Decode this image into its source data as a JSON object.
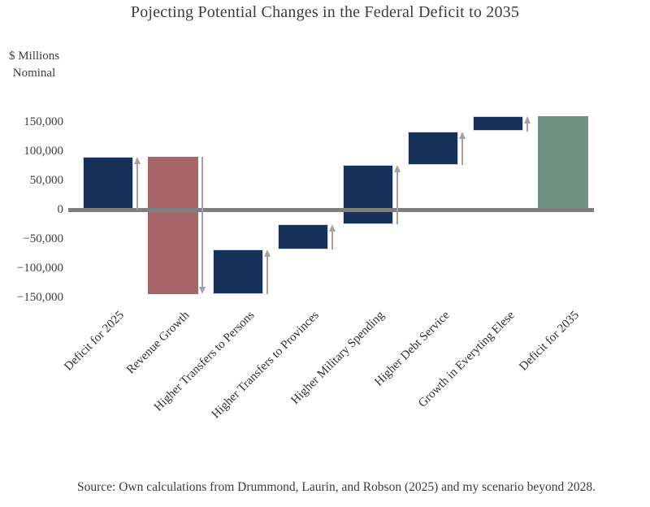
{
  "chart_data": {
    "type": "bar",
    "subtype": "waterfall",
    "title": "Pojecting Potential Changes in the Federal Deficit to 2035",
    "ylabel_lines": [
      "$ Millions",
      "Nominal"
    ],
    "units": "$ Millions Nominal",
    "grid": false,
    "legend": false,
    "ylim": [
      -160000,
      175000
    ],
    "yticks": [
      {
        "value": 150000,
        "label": "150,000"
      },
      {
        "value": 100000,
        "label": "100,000"
      },
      {
        "value": 50000,
        "label": "50,000"
      },
      {
        "value": 0,
        "label": "0"
      },
      {
        "value": -50000,
        "label": "−50,000"
      },
      {
        "value": -100000,
        "label": "−100,000"
      },
      {
        "value": -150000,
        "label": "−150,000"
      }
    ],
    "categories": [
      "Deficit for 2025",
      "Revenue Growth",
      "Higher Transfers to Persons",
      "Higher Transfers to Provinces",
      "Higher Military Spending",
      "Higher Debt Service",
      "Growth in Everyting Elese",
      "Deficit for 2035"
    ],
    "bars": [
      {
        "label": "Deficit for 2025",
        "start": 0,
        "end": 90000,
        "change": 90000,
        "kind": "total-start",
        "arrow": "up",
        "color": "#16325a"
      },
      {
        "label": "Revenue Growth",
        "start": 90000,
        "end": -144000,
        "change": -234000,
        "kind": "decrease",
        "arrow": "down",
        "color": "#a86466"
      },
      {
        "label": "Higher Transfers to Persons",
        "start": -144000,
        "end": -68000,
        "change": 76000,
        "kind": "increase",
        "arrow": "up",
        "color": "#16325a"
      },
      {
        "label": "Higher Transfers to Provinces",
        "start": -68000,
        "end": -25000,
        "change": 43000,
        "kind": "increase",
        "arrow": "up",
        "color": "#16325a"
      },
      {
        "label": "Higher Military Spending",
        "start": -25000,
        "end": 77000,
        "change": 102000,
        "kind": "increase",
        "arrow": "up",
        "color": "#16325a"
      },
      {
        "label": "Higher Debt Service",
        "start": 77000,
        "end": 134000,
        "change": 57000,
        "kind": "increase",
        "arrow": "up",
        "color": "#16325a"
      },
      {
        "label": "Growth in Everyting Elese",
        "start": 134000,
        "end": 160000,
        "change": 26000,
        "kind": "increase",
        "arrow": "up",
        "color": "#16325a"
      },
      {
        "label": "Deficit for 2035",
        "start": 0,
        "end": 160000,
        "change": 160000,
        "kind": "total-end",
        "arrow": "none",
        "color": "#6f9183"
      }
    ],
    "source": "Source: Own calculations from Drummond, Laurin, and Robson (2025) and my scenario beyond 2028.",
    "colors": {
      "increase": "#16325a",
      "decrease": "#a86466",
      "total": "#6f9183",
      "zero_line": "#7f7f7f",
      "arrow": "#a3a3a3",
      "bar_border": "#d6dae1",
      "text": "#3a3a3a"
    }
  }
}
